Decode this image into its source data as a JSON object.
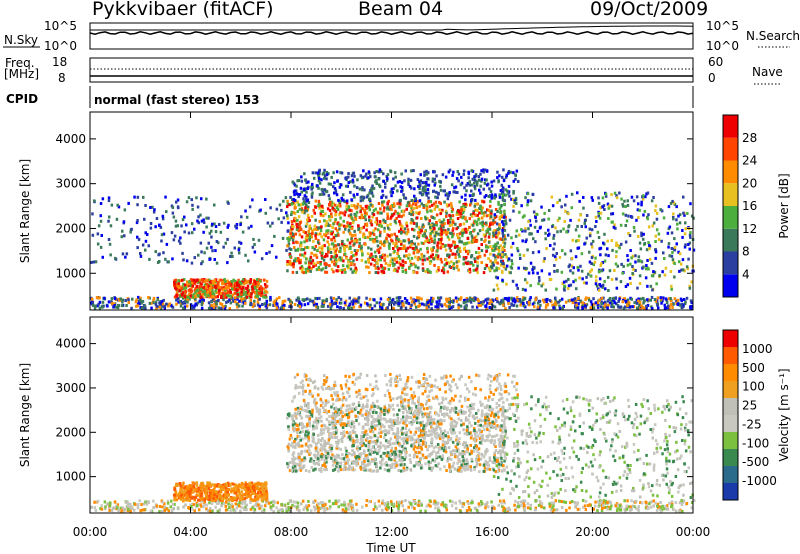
{
  "header": {
    "station": "Pykkvibaer (fitACF)",
    "beam": "Beam 04",
    "date": "09/Oct/2009"
  },
  "top_panels": {
    "nsky_label": "N.Sky",
    "nsky_ticks": [
      "10^5",
      "10^0"
    ],
    "nsearch_label": "N.Search",
    "nsearch_ticks": [
      "10^5",
      "10^0"
    ],
    "freq_label_1": "Freq.",
    "freq_label_2": "[MHz]",
    "freq_ticks": [
      "18",
      "8"
    ],
    "nave_label": "Nave",
    "nave_ticks": [
      "60",
      "0"
    ],
    "cpid_label": "CPID",
    "cpid_text": "normal (fast stereo) 153"
  },
  "colors": {
    "power_scale": [
      "#0000ee",
      "#2b3fa0",
      "#3a7a5a",
      "#4cae3c",
      "#e8c020",
      "#ff8c00",
      "#ff4500",
      "#ee0000"
    ],
    "velocity_scale": [
      "#ee0000",
      "#ff5a00",
      "#ff8c00",
      "#f0a020",
      "#c0c0b8",
      "#c8c8c0",
      "#7cc040",
      "#3a8a50",
      "#2a6a8a",
      "#1a3aaa"
    ]
  },
  "chart_data": [
    {
      "type": "heatmap",
      "title": "Power",
      "ylabel": "Slant Range [km]",
      "xlabel": "",
      "x_ticks": [
        "00:00",
        "04:00",
        "08:00",
        "12:00",
        "16:00",
        "20:00",
        "00:00"
      ],
      "x_range_hours": [
        0,
        24
      ],
      "y_ticks": [
        1000,
        2000,
        3000,
        4000
      ],
      "ylim": [
        180,
        4600
      ],
      "colorbar_label": "Power [dB]",
      "colorbar_ticks": [
        4,
        8,
        12,
        16,
        20,
        24,
        28
      ],
      "colorbar_range": [
        0,
        30
      ]
    },
    {
      "type": "heatmap",
      "title": "Velocity",
      "ylabel": "Slant Range [km]",
      "xlabel": "Time UT",
      "x_ticks": [
        "00:00",
        "04:00",
        "08:00",
        "12:00",
        "16:00",
        "20:00",
        "00:00"
      ],
      "x_range_hours": [
        0,
        24
      ],
      "y_ticks": [
        1000,
        2000,
        3000,
        4000
      ],
      "ylim": [
        180,
        4600
      ],
      "colorbar_label": "Velocity [m s⁻¹]",
      "colorbar_ticks": [
        1000,
        500,
        100,
        25,
        -25,
        -100,
        -500,
        -1000
      ]
    }
  ]
}
